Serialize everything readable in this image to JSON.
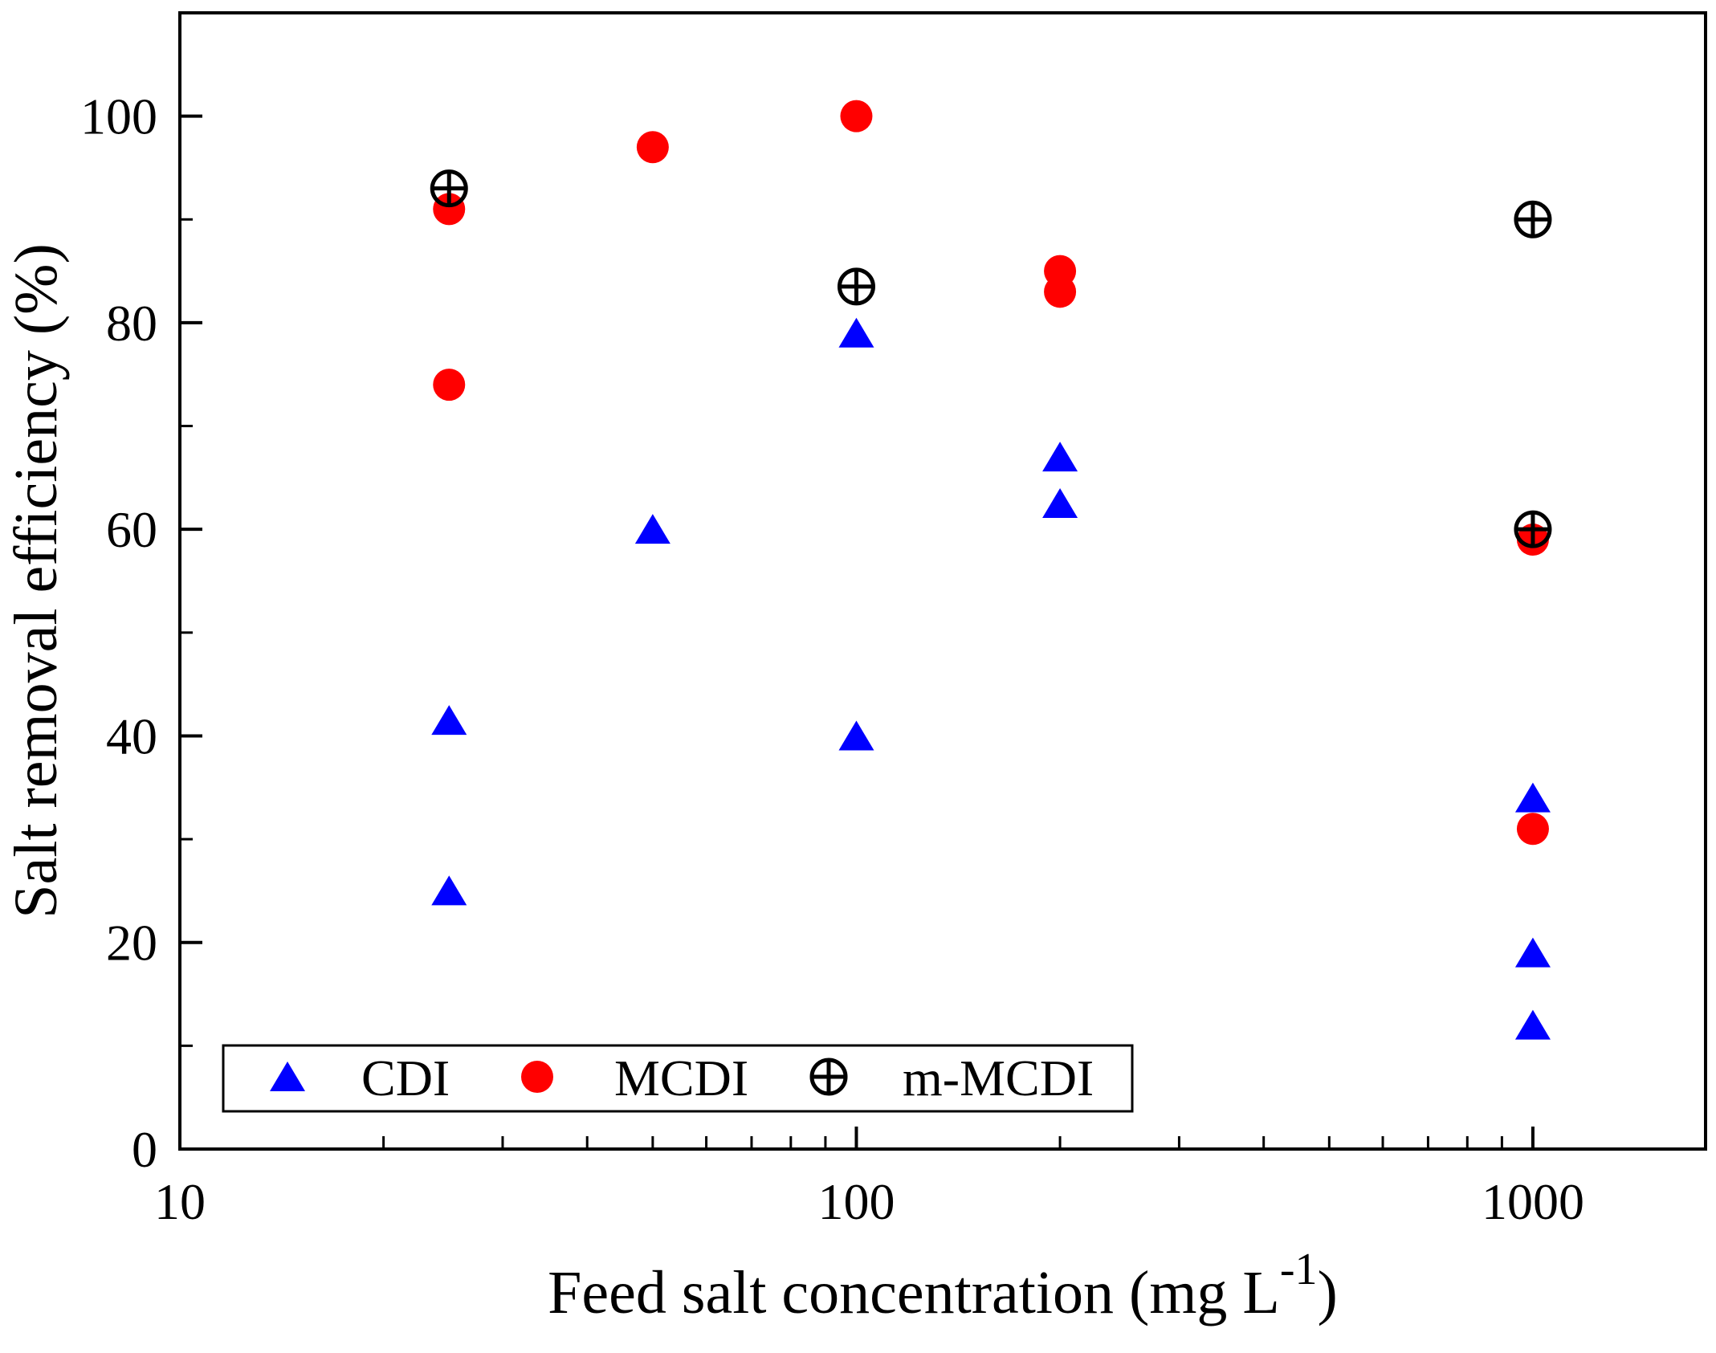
{
  "chart_data": {
    "type": "scatter",
    "title": "",
    "xlabel": "Feed salt concentration (mg L",
    "xlabel_sup": "-1",
    "xlabel_close": ")",
    "ylabel": "Salt removal efficiency (%)",
    "x_scale": "log",
    "xlim": [
      10,
      1800
    ],
    "ylim": [
      0,
      110
    ],
    "x_ticks": [
      {
        "value": 10,
        "label": "10"
      },
      {
        "value": 100,
        "label": "100"
      },
      {
        "value": 1000,
        "label": "1000"
      }
    ],
    "y_ticks": [
      {
        "value": 0,
        "label": "0"
      },
      {
        "value": 20,
        "label": "20"
      },
      {
        "value": 40,
        "label": "40"
      },
      {
        "value": 60,
        "label": "60"
      },
      {
        "value": 80,
        "label": "80"
      },
      {
        "value": 100,
        "label": "100"
      }
    ],
    "legend_position": "bottom-left",
    "series": [
      {
        "name": "CDI",
        "marker": "triangle",
        "color": "#0000ff",
        "points": [
          {
            "x": 25,
            "y": 41.5
          },
          {
            "x": 25,
            "y": 25
          },
          {
            "x": 50,
            "y": 60
          },
          {
            "x": 100,
            "y": 79
          },
          {
            "x": 100,
            "y": 40
          },
          {
            "x": 200,
            "y": 67
          },
          {
            "x": 200,
            "y": 62.5
          },
          {
            "x": 1000,
            "y": 34
          },
          {
            "x": 1000,
            "y": 19
          },
          {
            "x": 1000,
            "y": 12
          }
        ]
      },
      {
        "name": "MCDI",
        "marker": "circle",
        "color": "#ff0000",
        "points": [
          {
            "x": 25,
            "y": 91
          },
          {
            "x": 25,
            "y": 74
          },
          {
            "x": 50,
            "y": 97
          },
          {
            "x": 100,
            "y": 100
          },
          {
            "x": 200,
            "y": 85
          },
          {
            "x": 200,
            "y": 83
          },
          {
            "x": 1000,
            "y": 59
          },
          {
            "x": 1000,
            "y": 31
          }
        ]
      },
      {
        "name": "m-MCDI",
        "marker": "circle-plus",
        "color": "#000000",
        "points": [
          {
            "x": 25,
            "y": 93
          },
          {
            "x": 100,
            "y": 83.5
          },
          {
            "x": 1000,
            "y": 90
          },
          {
            "x": 1000,
            "y": 60
          }
        ]
      }
    ]
  }
}
